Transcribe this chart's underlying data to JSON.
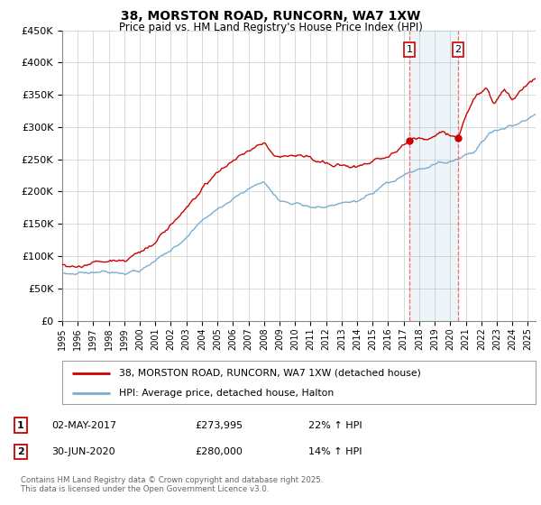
{
  "title": "38, MORSTON ROAD, RUNCORN, WA7 1XW",
  "subtitle": "Price paid vs. HM Land Registry's House Price Index (HPI)",
  "legend_line1": "38, MORSTON ROAD, RUNCORN, WA7 1XW (detached house)",
  "legend_line2": "HPI: Average price, detached house, Halton",
  "red_color": "#cc0000",
  "blue_color": "#7aadcf",
  "marker1_date": 2017.37,
  "marker2_date": 2020.5,
  "ylim": [
    0,
    450000
  ],
  "yticks": [
    0,
    50000,
    100000,
    150000,
    200000,
    250000,
    300000,
    350000,
    400000,
    450000
  ],
  "ytick_labels": [
    "£0",
    "£50K",
    "£100K",
    "£150K",
    "£200K",
    "£250K",
    "£300K",
    "£350K",
    "£400K",
    "£450K"
  ],
  "footer": "Contains HM Land Registry data © Crown copyright and database right 2025.\nThis data is licensed under the Open Government Licence v3.0.",
  "plot_bg": "#ffffff",
  "grid_color": "#cccccc",
  "dashed_color": "#ff8888"
}
